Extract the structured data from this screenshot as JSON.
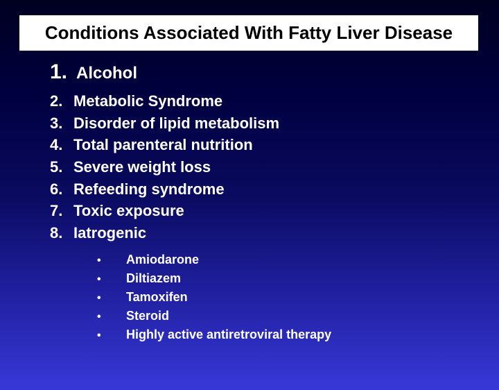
{
  "title": "Conditions Associated With Fatty Liver Disease",
  "items": [
    {
      "num": "1.",
      "text": "Alcohol"
    },
    {
      "num": "2.",
      "text": "Metabolic Syndrome"
    },
    {
      "num": "3.",
      "text": "Disorder of lipid metabolism"
    },
    {
      "num": "4.",
      "text": "Total parenteral nutrition"
    },
    {
      "num": "5.",
      "text": "Severe weight loss"
    },
    {
      "num": "6.",
      "text": "Refeeding syndrome"
    },
    {
      "num": "7.",
      "text": "Toxic exposure"
    },
    {
      "num": "8.",
      "text": "Iatrogenic"
    }
  ],
  "subitems": [
    {
      "bullet": "•",
      "text": "Amiodarone"
    },
    {
      "bullet": "•",
      "text": "Diltiazem"
    },
    {
      "bullet": "•",
      "text": "Tamoxifen"
    },
    {
      "bullet": "•",
      "text": "Steroid"
    },
    {
      "bullet": "•",
      "text": "Highly active antiretroviral therapy"
    }
  ],
  "styling": {
    "slide_width": 720,
    "slide_height": 540,
    "background_gradient": [
      "#000020",
      "#000040",
      "#0a0a60",
      "#2020a0",
      "#3838d8"
    ],
    "title_bg": "#ffffff",
    "title_color": "#000000",
    "title_fontsize": 26,
    "title_fontweight": "bold",
    "text_color": "#ffffff",
    "first_item_num_fontsize": 30,
    "first_item_text_fontsize": 24,
    "item_fontsize": 22,
    "subitem_fontsize": 18,
    "font_family": "Arial"
  }
}
